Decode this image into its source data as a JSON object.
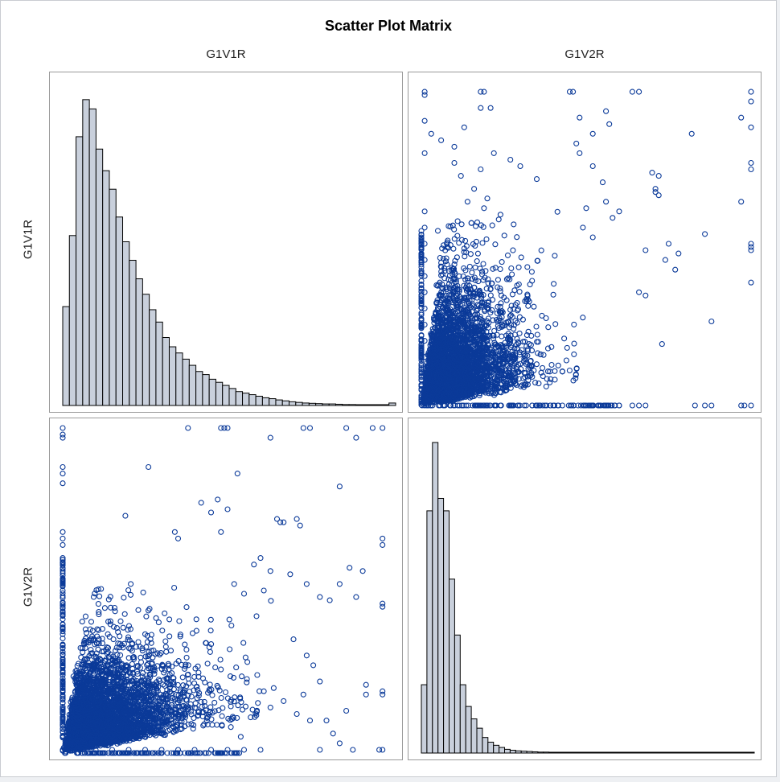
{
  "chart_data": {
    "type": "scatter-matrix",
    "title": "Scatter Plot Matrix",
    "variables": [
      "G1V1R",
      "G1V2R"
    ],
    "colors": {
      "marker": "#0b3a99",
      "bar_fill": "#c9d0dc",
      "bar_stroke": "#000000",
      "frame": "#9a9a9a"
    },
    "diagonal_histograms": {
      "G1V1R": {
        "bins": 50,
        "relative_heights": [
          0.32,
          0.55,
          0.87,
          0.99,
          0.96,
          0.83,
          0.76,
          0.7,
          0.61,
          0.53,
          0.47,
          0.41,
          0.36,
          0.31,
          0.27,
          0.22,
          0.19,
          0.17,
          0.15,
          0.13,
          0.11,
          0.1,
          0.085,
          0.075,
          0.065,
          0.055,
          0.045,
          0.04,
          0.035,
          0.03,
          0.025,
          0.022,
          0.018,
          0.015,
          0.012,
          0.01,
          0.008,
          0.007,
          0.006,
          0.005,
          0.005,
          0.004,
          0.003,
          0.003,
          0.002,
          0.002,
          0.002,
          0.002,
          0.001,
          0.008
        ]
      },
      "G1V2R": {
        "bins": 60,
        "relative_heights": [
          0.22,
          0.78,
          1.0,
          0.82,
          0.78,
          0.56,
          0.38,
          0.22,
          0.15,
          0.11,
          0.08,
          0.05,
          0.035,
          0.025,
          0.018,
          0.012,
          0.009,
          0.007,
          0.006,
          0.005,
          0.004,
          0.003,
          0.003,
          0.002,
          0.002,
          0.002,
          0.002,
          0.002,
          0.002,
          0.002,
          0.002,
          0.002,
          0.002,
          0.002,
          0.002,
          0.002,
          0.002,
          0.002,
          0.002,
          0.002,
          0.002,
          0.002,
          0.002,
          0.002,
          0.002,
          0.002,
          0.002,
          0.002,
          0.002,
          0.002,
          0.002,
          0.002,
          0.002,
          0.002,
          0.002,
          0.002,
          0.002,
          0.002,
          0.002,
          0.002
        ]
      }
    },
    "scatter": {
      "x_variable": "G1V1R",
      "y_variable": "G1V2R",
      "note_points": "dense cloud concentrated near low values of both variables with sparse outliers toward high values",
      "points": [
        [
          0.0,
          1.0
        ],
        [
          0.0,
          0.98
        ],
        [
          0.0,
          0.97
        ],
        [
          0.0,
          0.88
        ],
        [
          0.0,
          0.86
        ],
        [
          0.0,
          0.83
        ],
        [
          0.0,
          0.68
        ],
        [
          0.0,
          0.66
        ],
        [
          0.0,
          0.64
        ],
        [
          0.0,
          0.6
        ],
        [
          0.0,
          0.56
        ],
        [
          0.0,
          0.52
        ],
        [
          0.0,
          0.5
        ],
        [
          0.38,
          1.0
        ],
        [
          0.48,
          1.0
        ],
        [
          0.49,
          1.0
        ],
        [
          0.5,
          1.0
        ],
        [
          0.63,
          0.97
        ],
        [
          0.73,
          1.0
        ],
        [
          0.75,
          1.0
        ],
        [
          0.86,
          1.0
        ],
        [
          0.89,
          0.97
        ],
        [
          0.94,
          1.0
        ],
        [
          0.97,
          1.0
        ],
        [
          0.26,
          0.88
        ],
        [
          0.53,
          0.86
        ],
        [
          0.84,
          0.82
        ],
        [
          0.47,
          0.78
        ],
        [
          0.42,
          0.77
        ],
        [
          0.5,
          0.75
        ],
        [
          0.45,
          0.74
        ],
        [
          0.19,
          0.73
        ],
        [
          0.65,
          0.72
        ],
        [
          0.71,
          0.72
        ],
        [
          0.66,
          0.71
        ],
        [
          0.67,
          0.71
        ],
        [
          0.72,
          0.7
        ],
        [
          0.34,
          0.68
        ],
        [
          0.48,
          0.68
        ],
        [
          0.35,
          0.66
        ],
        [
          0.97,
          0.66
        ],
        [
          0.97,
          0.64
        ],
        [
          0.91,
          0.56
        ],
        [
          0.87,
          0.57
        ],
        [
          0.97,
          0.46
        ],
        [
          0.97,
          0.45
        ],
        [
          0.97,
          0.19
        ],
        [
          0.97,
          0.18
        ],
        [
          0.92,
          0.21
        ],
        [
          0.92,
          0.18
        ],
        [
          0.89,
          0.48
        ],
        [
          0.84,
          0.52
        ],
        [
          0.81,
          0.47
        ],
        [
          0.78,
          0.48
        ],
        [
          0.74,
          0.52
        ],
        [
          0.69,
          0.55
        ],
        [
          0.58,
          0.58
        ],
        [
          0.6,
          0.6
        ],
        [
          0.63,
          0.56
        ],
        [
          0.61,
          0.5
        ],
        [
          0.55,
          0.49
        ],
        [
          0.52,
          0.52
        ],
        [
          0.86,
          0.13
        ],
        [
          0.84,
          0.03
        ],
        [
          0.78,
          0.01
        ],
        [
          0.8,
          0.1
        ],
        [
          0.82,
          0.06
        ],
        [
          0.75,
          0.1
        ],
        [
          0.71,
          0.12
        ],
        [
          0.67,
          0.16
        ],
        [
          0.64,
          0.2
        ],
        [
          0.88,
          0.01
        ],
        [
          0.97,
          0.01
        ],
        [
          0.96,
          0.01
        ],
        [
          0.56,
          0.28
        ],
        [
          0.59,
          0.24
        ],
        [
          0.61,
          0.19
        ],
        [
          0.63,
          0.14
        ],
        [
          0.57,
          0.11
        ],
        [
          0.54,
          0.05
        ],
        [
          0.51,
          0.08
        ],
        [
          0.7,
          0.35
        ],
        [
          0.74,
          0.3
        ],
        [
          0.76,
          0.27
        ],
        [
          0.78,
          0.22
        ],
        [
          0.73,
          0.18
        ],
        [
          0.3,
          0.01
        ],
        [
          0.35,
          0.01
        ],
        [
          0.4,
          0.01
        ],
        [
          0.45,
          0.01
        ],
        [
          0.5,
          0.01
        ],
        [
          0.55,
          0.01
        ],
        [
          0.6,
          0.01
        ],
        [
          0.2,
          0.01
        ],
        [
          0.25,
          0.01
        ],
        [
          0.15,
          0.01
        ],
        [
          0.1,
          0.01
        ]
      ]
    }
  }
}
